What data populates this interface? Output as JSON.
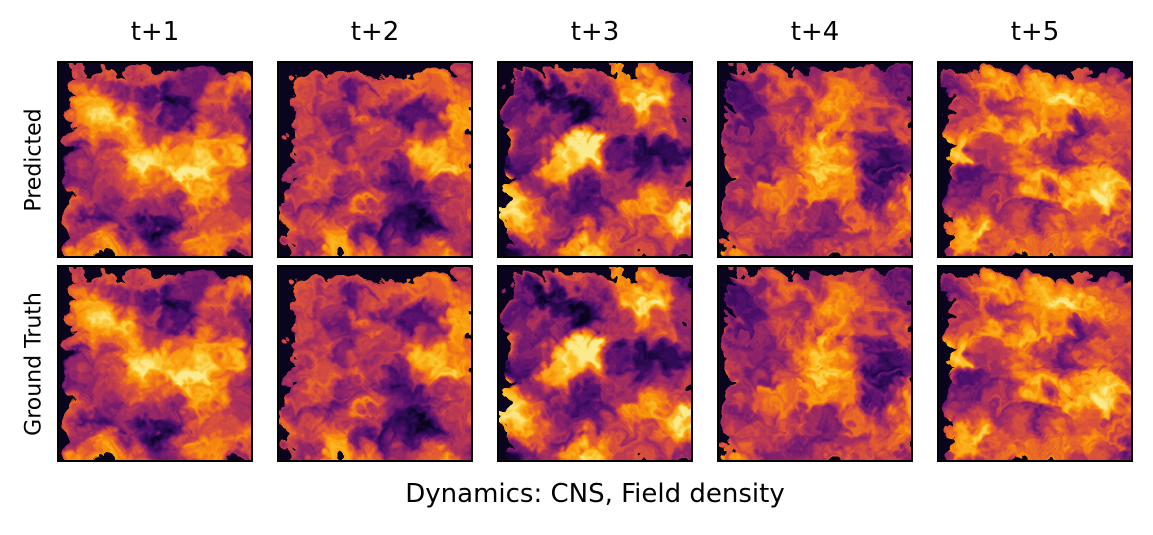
{
  "chart_data": {
    "type": "heatmap",
    "title": "Dynamics: CNS, Field density",
    "columns": [
      "t+1",
      "t+2",
      "t+3",
      "t+4",
      "t+5"
    ],
    "rows": [
      "Predicted",
      "Ground Truth"
    ],
    "colormap": "inferno",
    "colormap_stops": [
      "#0b0420",
      "#2c0a52",
      "#56106e",
      "#8a226a",
      "#ba3655",
      "#e35933",
      "#f98e09",
      "#fbbe23",
      "#fcea8d"
    ],
    "axes_ticks": "none"
  }
}
